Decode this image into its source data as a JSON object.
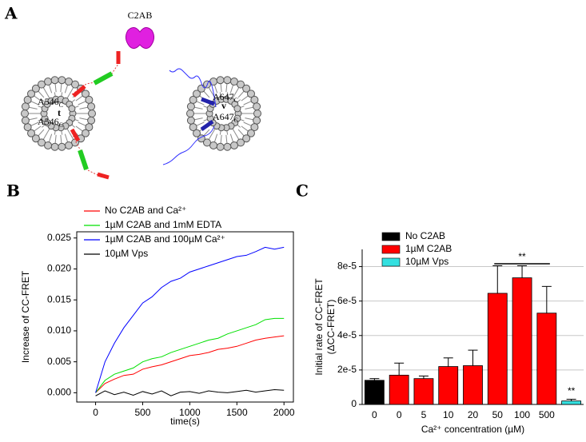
{
  "panel_a": {
    "label": "A",
    "protein": "C2AB",
    "t_label": "t",
    "v_label": "v",
    "t_sites": [
      {
        "residue": "A546",
        "sub": "C"
      },
      {
        "residue": "A546",
        "sub": "C"
      }
    ],
    "v_sites": [
      {
        "residue": "A647",
        "sub": "C"
      },
      {
        "residue": "A647",
        "sub": "C"
      }
    ]
  },
  "chart_data": [
    {
      "type": "line",
      "panel_label": "B",
      "xlabel": "time(s)",
      "ylabel": "Increase of CC-FRET",
      "x": [
        0,
        100,
        200,
        300,
        400,
        500,
        600,
        700,
        800,
        900,
        1000,
        1100,
        1200,
        1300,
        1400,
        1500,
        1600,
        1700,
        1800,
        1900,
        2000
      ],
      "xlim": [
        -200,
        2100
      ],
      "xticks": [
        0,
        500,
        1000,
        1500,
        2000
      ],
      "ylim": [
        -0.0015,
        0.026
      ],
      "yticks": [
        {
          "value": 0,
          "label": "0.000"
        },
        {
          "value": 0.005,
          "label": "0.005"
        },
        {
          "value": 0.01,
          "label": "0.010"
        },
        {
          "value": 0.015,
          "label": "0.015"
        },
        {
          "value": 0.02,
          "label": "0.020"
        },
        {
          "value": 0.025,
          "label": "0.025"
        }
      ],
      "series": [
        {
          "name": "No C2AB and Ca²⁺",
          "color": "#ff0000",
          "values": [
            0,
            0.0015,
            0.0022,
            0.0028,
            0.003,
            0.0038,
            0.0042,
            0.0045,
            0.005,
            0.0055,
            0.006,
            0.0062,
            0.0065,
            0.007,
            0.0072,
            0.0075,
            0.008,
            0.0085,
            0.0088,
            0.009,
            0.0092
          ]
        },
        {
          "name": "1µM C2AB and 1mM EDTA",
          "color": "#00e000",
          "values": [
            0,
            0.002,
            0.003,
            0.0035,
            0.004,
            0.005,
            0.0055,
            0.0058,
            0.0065,
            0.007,
            0.0075,
            0.008,
            0.0085,
            0.0088,
            0.0095,
            0.01,
            0.0105,
            0.011,
            0.0118,
            0.012,
            0.012
          ]
        },
        {
          "name": "1µM C2AB and 100µM Ca²⁺",
          "color": "#0000ff",
          "values": [
            0,
            0.005,
            0.008,
            0.0105,
            0.0125,
            0.0145,
            0.0155,
            0.017,
            0.018,
            0.0185,
            0.0195,
            0.02,
            0.0205,
            0.021,
            0.0215,
            0.022,
            0.0222,
            0.0228,
            0.0235,
            0.0232,
            0.0235
          ]
        },
        {
          "name": "10µM Vps",
          "color": "#000000",
          "values": [
            -0.0005,
            0.0003,
            -0.0003,
            0.0001,
            -0.0004,
            0.0002,
            -0.0002,
            0.0003,
            -0.0005,
            0.0001,
            0.0002,
            -0.0001,
            0.0003,
            0.0001,
            0,
            0.0002,
            0.0004,
            0.0001,
            0.0003,
            0.0005,
            0.0004
          ]
        }
      ]
    },
    {
      "type": "bar",
      "panel_label": "C",
      "xlabel": "Ca²⁺ concentration (µM)",
      "ylabel": [
        "Initial rate of CC-FRET",
        "(ΔCC-FRET)"
      ],
      "categories": [
        "0",
        "0",
        "5",
        "10",
        "20",
        "50",
        "100",
        "500",
        null
      ],
      "ylim": [
        0,
        9e-05
      ],
      "yticks": [
        0,
        {
          "value": 2e-05,
          "label": "2e-5"
        },
        {
          "value": 4e-05,
          "label": "4e-5"
        },
        {
          "value": 6e-05,
          "label": "6e-5"
        },
        {
          "value": 8e-05,
          "label": "8e-5"
        }
      ],
      "grid": true,
      "series": [
        {
          "name": "No C2AB",
          "color": "#000000",
          "values": [
            1.4e-05,
            null,
            null,
            null,
            null,
            null,
            null,
            null,
            null
          ],
          "errors": [
            1e-06,
            null,
            null,
            null,
            null,
            null,
            null,
            null,
            null
          ]
        },
        {
          "name": "1µM C2AB",
          "color": "#ff0000",
          "values": [
            null,
            1.7e-05,
            1.5e-05,
            2.2e-05,
            2.25e-05,
            6.45e-05,
            7.35e-05,
            5.3e-05,
            null
          ],
          "errors": [
            null,
            7e-06,
            1.5e-06,
            5e-06,
            9e-06,
            1.6e-05,
            7e-06,
            1.55e-05,
            null
          ]
        },
        {
          "name": "10µM Vps",
          "color": "#33e0e0",
          "values": [
            null,
            null,
            null,
            null,
            null,
            null,
            null,
            null,
            2e-06
          ],
          "errors": [
            null,
            null,
            null,
            null,
            null,
            null,
            null,
            null,
            1e-06
          ]
        }
      ],
      "annotations": [
        "**",
        "**"
      ]
    }
  ]
}
